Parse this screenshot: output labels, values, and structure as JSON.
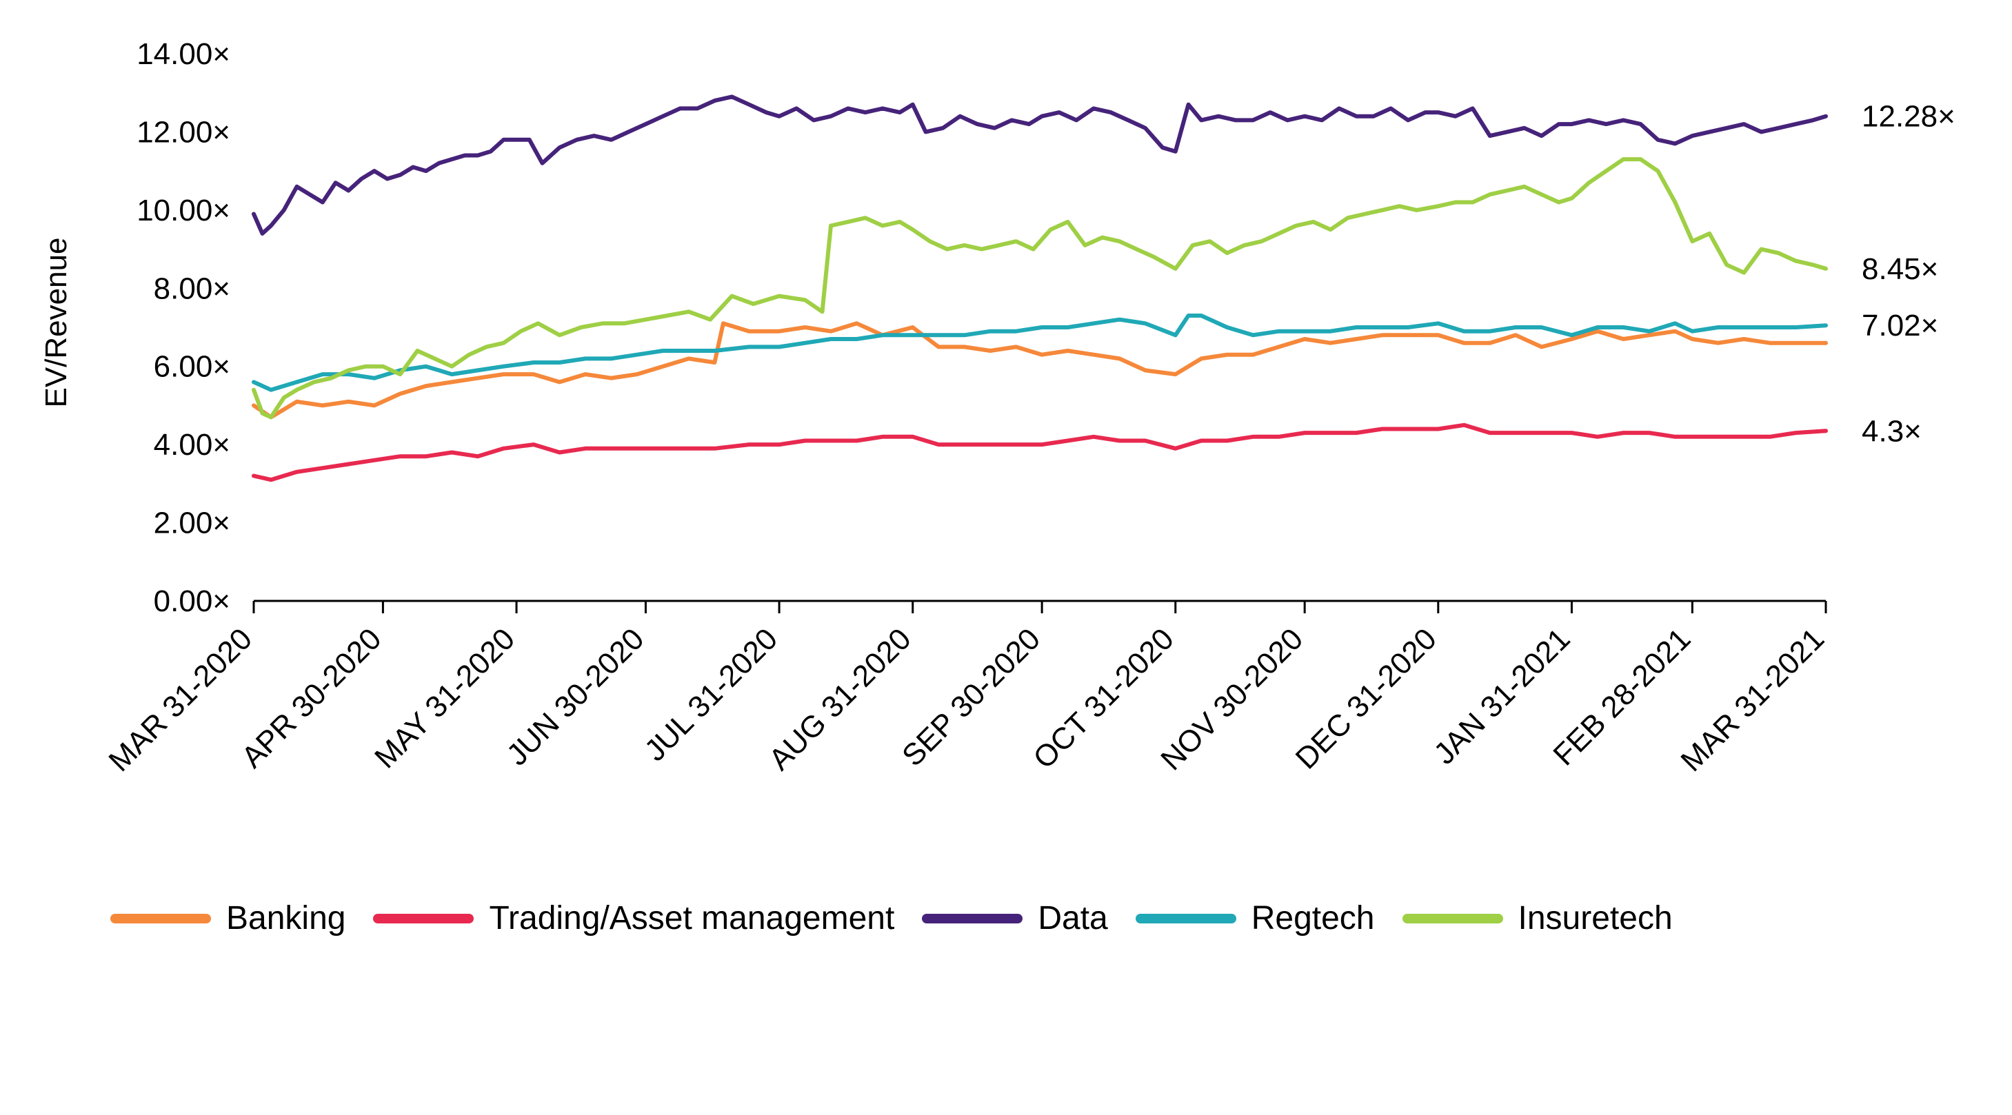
{
  "chart_data": {
    "type": "line",
    "ylabel": "EV/Revenue",
    "xlabel": "",
    "ylim": [
      0,
      14
    ],
    "y_ticks": [
      "0.00×",
      "2.00×",
      "4.00×",
      "6.00×",
      "8.00×",
      "10.00×",
      "12.00×",
      "14.00×"
    ],
    "x_tick_labels": [
      "MAR 31-2020",
      "APR 30-2020",
      "MAY 31-2020",
      "JUN 30-2020",
      "JUL 31-2020",
      "AUG 31-2020",
      "SEP 30-2020",
      "OCT 31-2020",
      "NOV 30-2020",
      "DEC 31-2020",
      "JAN 31-2021",
      "FEB 28-2021",
      "MAR 31-2021"
    ],
    "x_dates": [
      "2020-03-31",
      "2020-04-30",
      "2020-05-31",
      "2020-06-30",
      "2020-07-31",
      "2020-08-31",
      "2020-09-30",
      "2020-10-31",
      "2020-11-30",
      "2020-12-31",
      "2021-01-31",
      "2021-02-28",
      "2021-03-31"
    ],
    "legend_position": "bottom",
    "grid": false,
    "series": [
      {
        "name": "Banking",
        "color": "#f5883a",
        "end_label": "",
        "x": [
          "2020-03-31",
          "2020-04-04",
          "2020-04-10",
          "2020-04-16",
          "2020-04-22",
          "2020-04-28",
          "2020-05-04",
          "2020-05-10",
          "2020-05-16",
          "2020-05-22",
          "2020-05-28",
          "2020-06-04",
          "2020-06-10",
          "2020-06-16",
          "2020-06-22",
          "2020-06-28",
          "2020-07-04",
          "2020-07-10",
          "2020-07-16",
          "2020-07-18",
          "2020-07-24",
          "2020-07-31",
          "2020-08-06",
          "2020-08-12",
          "2020-08-18",
          "2020-08-24",
          "2020-08-31",
          "2020-09-06",
          "2020-09-12",
          "2020-09-18",
          "2020-09-24",
          "2020-09-30",
          "2020-10-06",
          "2020-10-12",
          "2020-10-18",
          "2020-10-24",
          "2020-10-31",
          "2020-11-06",
          "2020-11-12",
          "2020-11-18",
          "2020-11-24",
          "2020-11-30",
          "2020-12-06",
          "2020-12-12",
          "2020-12-18",
          "2020-12-24",
          "2020-12-31",
          "2021-01-06",
          "2021-01-12",
          "2021-01-18",
          "2021-01-24",
          "2021-01-31",
          "2021-02-06",
          "2021-02-12",
          "2021-02-18",
          "2021-02-24",
          "2021-02-28",
          "2021-03-06",
          "2021-03-12",
          "2021-03-18",
          "2021-03-24",
          "2021-03-31"
        ],
        "y": [
          5.0,
          4.7,
          5.1,
          5.0,
          5.1,
          5.0,
          5.3,
          5.5,
          5.6,
          5.7,
          5.8,
          5.8,
          5.6,
          5.8,
          5.7,
          5.8,
          6.0,
          6.2,
          6.1,
          7.1,
          6.9,
          6.9,
          7.0,
          6.9,
          7.1,
          6.8,
          7.0,
          6.5,
          6.5,
          6.4,
          6.5,
          6.3,
          6.4,
          6.3,
          6.2,
          5.9,
          5.8,
          6.2,
          6.3,
          6.3,
          6.5,
          6.7,
          6.6,
          6.7,
          6.8,
          6.8,
          6.8,
          6.6,
          6.6,
          6.8,
          6.5,
          6.7,
          6.9,
          6.7,
          6.8,
          6.9,
          6.7,
          6.6,
          6.7,
          6.6,
          6.6,
          6.6
        ]
      },
      {
        "name": "Trading/Asset management",
        "color": "#e8294f",
        "end_label": "4.3×",
        "x": [
          "2020-03-31",
          "2020-04-04",
          "2020-04-10",
          "2020-04-16",
          "2020-04-22",
          "2020-04-28",
          "2020-05-04",
          "2020-05-10",
          "2020-05-16",
          "2020-05-22",
          "2020-05-28",
          "2020-06-04",
          "2020-06-10",
          "2020-06-16",
          "2020-06-22",
          "2020-06-28",
          "2020-07-04",
          "2020-07-10",
          "2020-07-16",
          "2020-07-24",
          "2020-07-31",
          "2020-08-06",
          "2020-08-12",
          "2020-08-18",
          "2020-08-24",
          "2020-08-31",
          "2020-09-06",
          "2020-09-12",
          "2020-09-18",
          "2020-09-24",
          "2020-09-30",
          "2020-10-06",
          "2020-10-12",
          "2020-10-18",
          "2020-10-24",
          "2020-10-31",
          "2020-11-06",
          "2020-11-12",
          "2020-11-18",
          "2020-11-24",
          "2020-11-30",
          "2020-12-06",
          "2020-12-12",
          "2020-12-18",
          "2020-12-24",
          "2020-12-31",
          "2021-01-06",
          "2021-01-12",
          "2021-01-18",
          "2021-01-24",
          "2021-01-31",
          "2021-02-06",
          "2021-02-12",
          "2021-02-18",
          "2021-02-24",
          "2021-02-28",
          "2021-03-06",
          "2021-03-12",
          "2021-03-18",
          "2021-03-24",
          "2021-03-31"
        ],
        "y": [
          3.2,
          3.1,
          3.3,
          3.4,
          3.5,
          3.6,
          3.7,
          3.7,
          3.8,
          3.7,
          3.9,
          4.0,
          3.8,
          3.9,
          3.9,
          3.9,
          3.9,
          3.9,
          3.9,
          4.0,
          4.0,
          4.1,
          4.1,
          4.1,
          4.2,
          4.2,
          4.0,
          4.0,
          4.0,
          4.0,
          4.0,
          4.1,
          4.2,
          4.1,
          4.1,
          3.9,
          4.1,
          4.1,
          4.2,
          4.2,
          4.3,
          4.3,
          4.3,
          4.4,
          4.4,
          4.4,
          4.5,
          4.3,
          4.3,
          4.3,
          4.3,
          4.2,
          4.3,
          4.3,
          4.2,
          4.2,
          4.2,
          4.2,
          4.2,
          4.3,
          4.35
        ]
      },
      {
        "name": "Data",
        "color": "#46237a",
        "end_label": "12.28×",
        "x": [
          "2020-03-31",
          "2020-04-02",
          "2020-04-04",
          "2020-04-07",
          "2020-04-10",
          "2020-04-13",
          "2020-04-16",
          "2020-04-19",
          "2020-04-22",
          "2020-04-25",
          "2020-04-28",
          "2020-05-01",
          "2020-05-04",
          "2020-05-07",
          "2020-05-10",
          "2020-05-13",
          "2020-05-16",
          "2020-05-19",
          "2020-05-22",
          "2020-05-25",
          "2020-05-28",
          "2020-05-31",
          "2020-06-03",
          "2020-06-06",
          "2020-06-10",
          "2020-06-14",
          "2020-06-18",
          "2020-06-22",
          "2020-06-26",
          "2020-06-30",
          "2020-07-04",
          "2020-07-08",
          "2020-07-12",
          "2020-07-16",
          "2020-07-20",
          "2020-07-24",
          "2020-07-28",
          "2020-07-31",
          "2020-08-04",
          "2020-08-08",
          "2020-08-12",
          "2020-08-16",
          "2020-08-20",
          "2020-08-24",
          "2020-08-28",
          "2020-08-31",
          "2020-09-03",
          "2020-09-07",
          "2020-09-11",
          "2020-09-15",
          "2020-09-19",
          "2020-09-23",
          "2020-09-27",
          "2020-09-30",
          "2020-10-04",
          "2020-10-08",
          "2020-10-12",
          "2020-10-16",
          "2020-10-20",
          "2020-10-24",
          "2020-10-28",
          "2020-10-31",
          "2020-11-03",
          "2020-11-06",
          "2020-11-10",
          "2020-11-14",
          "2020-11-18",
          "2020-11-22",
          "2020-11-26",
          "2020-11-30",
          "2020-12-04",
          "2020-12-08",
          "2020-12-12",
          "2020-12-16",
          "2020-12-20",
          "2020-12-24",
          "2020-12-28",
          "2020-12-31",
          "2021-01-04",
          "2021-01-08",
          "2021-01-12",
          "2021-01-16",
          "2021-01-20",
          "2021-01-24",
          "2021-01-28",
          "2021-01-31",
          "2021-02-04",
          "2021-02-08",
          "2021-02-12",
          "2021-02-16",
          "2021-02-20",
          "2021-02-24",
          "2021-02-28",
          "2021-03-04",
          "2021-03-08",
          "2021-03-12",
          "2021-03-16",
          "2021-03-20",
          "2021-03-24",
          "2021-03-28",
          "2021-03-31"
        ],
        "y": [
          9.9,
          9.4,
          9.6,
          10.0,
          10.6,
          10.4,
          10.2,
          10.7,
          10.5,
          10.8,
          11.0,
          10.8,
          10.9,
          11.1,
          11.0,
          11.2,
          11.3,
          11.4,
          11.4,
          11.5,
          11.8,
          11.8,
          11.8,
          11.2,
          11.6,
          11.8,
          11.9,
          11.8,
          12.0,
          12.2,
          12.4,
          12.6,
          12.6,
          12.8,
          12.9,
          12.7,
          12.5,
          12.4,
          12.6,
          12.3,
          12.4,
          12.6,
          12.5,
          12.6,
          12.5,
          12.7,
          12.0,
          12.1,
          12.4,
          12.2,
          12.1,
          12.3,
          12.2,
          12.4,
          12.5,
          12.3,
          12.6,
          12.5,
          12.3,
          12.1,
          11.6,
          11.5,
          12.7,
          12.3,
          12.4,
          12.3,
          12.3,
          12.5,
          12.3,
          12.4,
          12.3,
          12.6,
          12.4,
          12.4,
          12.6,
          12.3,
          12.5,
          12.5,
          12.4,
          12.6,
          11.9,
          12.0,
          12.1,
          11.9,
          12.2,
          12.2,
          12.3,
          12.2,
          12.3,
          12.2,
          11.8,
          11.7,
          11.9,
          12.0,
          12.1,
          12.2,
          12.0,
          12.1,
          12.2,
          12.3,
          12.4
        ]
      },
      {
        "name": "Regtech",
        "color": "#20a8b6",
        "end_label": "7.02×",
        "x": [
          "2020-03-31",
          "2020-04-04",
          "2020-04-10",
          "2020-04-16",
          "2020-04-22",
          "2020-04-28",
          "2020-05-04",
          "2020-05-10",
          "2020-05-16",
          "2020-05-22",
          "2020-05-28",
          "2020-06-04",
          "2020-06-10",
          "2020-06-16",
          "2020-06-22",
          "2020-06-28",
          "2020-07-04",
          "2020-07-10",
          "2020-07-16",
          "2020-07-24",
          "2020-07-31",
          "2020-08-06",
          "2020-08-12",
          "2020-08-18",
          "2020-08-24",
          "2020-08-31",
          "2020-09-06",
          "2020-09-12",
          "2020-09-18",
          "2020-09-24",
          "2020-09-30",
          "2020-10-06",
          "2020-10-12",
          "2020-10-18",
          "2020-10-24",
          "2020-10-31",
          "2020-11-03",
          "2020-11-06",
          "2020-11-12",
          "2020-11-18",
          "2020-11-24",
          "2020-11-30",
          "2020-12-06",
          "2020-12-12",
          "2020-12-18",
          "2020-12-24",
          "2020-12-31",
          "2021-01-06",
          "2021-01-12",
          "2021-01-18",
          "2021-01-24",
          "2021-01-31",
          "2021-02-06",
          "2021-02-12",
          "2021-02-18",
          "2021-02-24",
          "2021-02-28",
          "2021-03-06",
          "2021-03-12",
          "2021-03-18",
          "2021-03-24",
          "2021-03-31"
        ],
        "y": [
          5.6,
          5.4,
          5.6,
          5.8,
          5.8,
          5.7,
          5.9,
          6.0,
          5.8,
          5.9,
          6.0,
          6.1,
          6.1,
          6.2,
          6.2,
          6.3,
          6.4,
          6.4,
          6.4,
          6.5,
          6.5,
          6.6,
          6.7,
          6.7,
          6.8,
          6.8,
          6.8,
          6.8,
          6.9,
          6.9,
          7.0,
          7.0,
          7.1,
          7.2,
          7.1,
          6.8,
          7.3,
          7.3,
          7.0,
          6.8,
          6.9,
          6.9,
          6.9,
          7.0,
          7.0,
          7.0,
          7.1,
          6.9,
          6.9,
          7.0,
          7.0,
          6.8,
          7.0,
          7.0,
          6.9,
          7.1,
          6.9,
          7.0,
          7.0,
          7.0,
          7.0,
          7.05
        ]
      },
      {
        "name": "Insuretech",
        "color": "#9fcf45",
        "end_label": "8.45×",
        "x": [
          "2020-03-31",
          "2020-04-02",
          "2020-04-04",
          "2020-04-07",
          "2020-04-10",
          "2020-04-14",
          "2020-04-18",
          "2020-04-22",
          "2020-04-26",
          "2020-04-30",
          "2020-05-04",
          "2020-05-08",
          "2020-05-12",
          "2020-05-16",
          "2020-05-20",
          "2020-05-24",
          "2020-05-28",
          "2020-06-01",
          "2020-06-05",
          "2020-06-10",
          "2020-06-15",
          "2020-06-20",
          "2020-06-25",
          "2020-06-30",
          "2020-07-05",
          "2020-07-10",
          "2020-07-15",
          "2020-07-20",
          "2020-07-25",
          "2020-07-31",
          "2020-08-06",
          "2020-08-10",
          "2020-08-12",
          "2020-08-16",
          "2020-08-20",
          "2020-08-24",
          "2020-08-28",
          "2020-08-31",
          "2020-09-04",
          "2020-09-08",
          "2020-09-12",
          "2020-09-16",
          "2020-09-20",
          "2020-09-24",
          "2020-09-28",
          "2020-10-02",
          "2020-10-06",
          "2020-10-10",
          "2020-10-14",
          "2020-10-18",
          "2020-10-22",
          "2020-10-26",
          "2020-10-31",
          "2020-11-04",
          "2020-11-08",
          "2020-11-12",
          "2020-11-16",
          "2020-11-20",
          "2020-11-24",
          "2020-11-28",
          "2020-12-02",
          "2020-12-06",
          "2020-12-10",
          "2020-12-14",
          "2020-12-18",
          "2020-12-22",
          "2020-12-26",
          "2020-12-31",
          "2021-01-04",
          "2021-01-08",
          "2021-01-12",
          "2021-01-16",
          "2021-01-20",
          "2021-01-24",
          "2021-01-28",
          "2021-01-31",
          "2021-02-04",
          "2021-02-08",
          "2021-02-12",
          "2021-02-16",
          "2021-02-20",
          "2021-02-24",
          "2021-02-28",
          "2021-03-04",
          "2021-03-08",
          "2021-03-12",
          "2021-03-16",
          "2021-03-20",
          "2021-03-24",
          "2021-03-28",
          "2021-03-31"
        ],
        "y": [
          5.4,
          4.8,
          4.7,
          5.2,
          5.4,
          5.6,
          5.7,
          5.9,
          6.0,
          6.0,
          5.8,
          6.4,
          6.2,
          6.0,
          6.3,
          6.5,
          6.6,
          6.9,
          7.1,
          6.8,
          7.0,
          7.1,
          7.1,
          7.2,
          7.3,
          7.4,
          7.2,
          7.8,
          7.6,
          7.8,
          7.7,
          7.4,
          9.6,
          9.7,
          9.8,
          9.6,
          9.7,
          9.5,
          9.2,
          9.0,
          9.1,
          9.0,
          9.1,
          9.2,
          9.0,
          9.5,
          9.7,
          9.1,
          9.3,
          9.2,
          9.0,
          8.8,
          8.5,
          9.1,
          9.2,
          8.9,
          9.1,
          9.2,
          9.4,
          9.6,
          9.7,
          9.5,
          9.8,
          9.9,
          10.0,
          10.1,
          10.0,
          10.1,
          10.2,
          10.2,
          10.4,
          10.5,
          10.6,
          10.4,
          10.2,
          10.3,
          10.7,
          11.0,
          11.3,
          11.3,
          11.0,
          10.2,
          9.2,
          9.4,
          8.6,
          8.4,
          9.0,
          8.9,
          8.7,
          8.6,
          8.5
        ]
      }
    ]
  }
}
